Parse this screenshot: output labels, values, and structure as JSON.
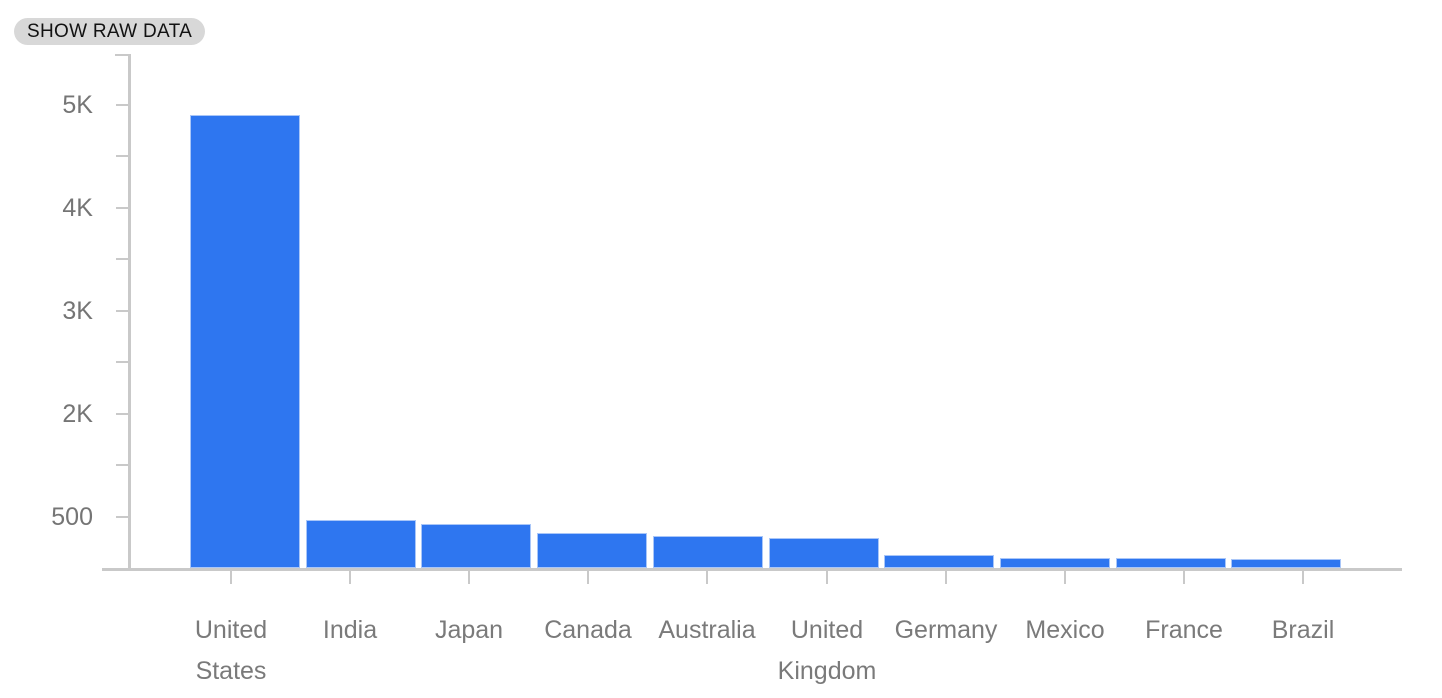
{
  "toolbar": {
    "show_raw_data_label": "SHOW RAW DATA"
  },
  "colors": {
    "bar_fill": "#2e76f0",
    "bar_border": "#a9c6f8",
    "axis": "#c9c9c9",
    "text_gray": "#757575",
    "button_bg": "#d8d8d8",
    "button_text": "#121212"
  },
  "chart_data": {
    "type": "bar",
    "title": "",
    "xlabel": "",
    "ylabel": "",
    "categories": [
      "United States",
      "India",
      "Japan",
      "Canada",
      "Australia",
      "United Kingdom",
      "Germany",
      "Mexico",
      "France",
      "Brazil"
    ],
    "values": [
      4890,
      520,
      470,
      375,
      350,
      325,
      140,
      105,
      105,
      100
    ],
    "y_tick_labels": [
      "5K",
      "4K",
      "3K",
      "2K",
      "500"
    ],
    "y_axis_max": 5000,
    "y_axis_min": 0,
    "grid": false,
    "legend_position": "none",
    "bar_color": "#2e76f0"
  }
}
